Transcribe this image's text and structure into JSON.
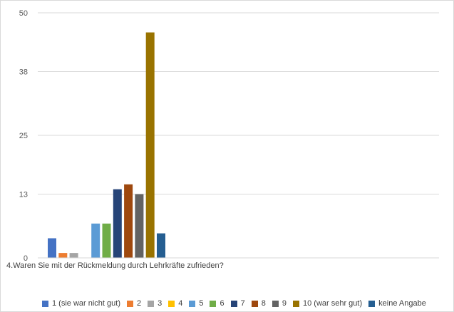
{
  "chart_data": {
    "type": "bar",
    "title": "",
    "xlabel": "4.Waren Sie mit der Rückmeldung durch Lehrkräfte zufrieden?",
    "ylabel": "",
    "ylim": [
      0,
      50
    ],
    "yticks": [
      0,
      13,
      25,
      38,
      50
    ],
    "grid": true,
    "legend_position": "bottom",
    "categories": [
      "4.Waren Sie mit der Rückmeldung durch Lehrkräfte zufrieden?"
    ],
    "series": [
      {
        "name": "1 (sie war nicht gut)",
        "values": [
          4
        ],
        "color": "#4472c4"
      },
      {
        "name": "2",
        "values": [
          1
        ],
        "color": "#ed7d31"
      },
      {
        "name": "3",
        "values": [
          1
        ],
        "color": "#a5a5a5"
      },
      {
        "name": "4",
        "values": [
          0
        ],
        "color": "#ffc000"
      },
      {
        "name": "5",
        "values": [
          7
        ],
        "color": "#5b9bd5"
      },
      {
        "name": "6",
        "values": [
          7
        ],
        "color": "#70ad47"
      },
      {
        "name": "7",
        "values": [
          14
        ],
        "color": "#264478"
      },
      {
        "name": "8",
        "values": [
          15
        ],
        "color": "#9e480e"
      },
      {
        "name": "9",
        "values": [
          13
        ],
        "color": "#636363"
      },
      {
        "name": "10 (war sehr gut)",
        "values": [
          46
        ],
        "color": "#997300"
      },
      {
        "name": "keine Angabe",
        "values": [
          5
        ],
        "color": "#255e91"
      }
    ]
  }
}
